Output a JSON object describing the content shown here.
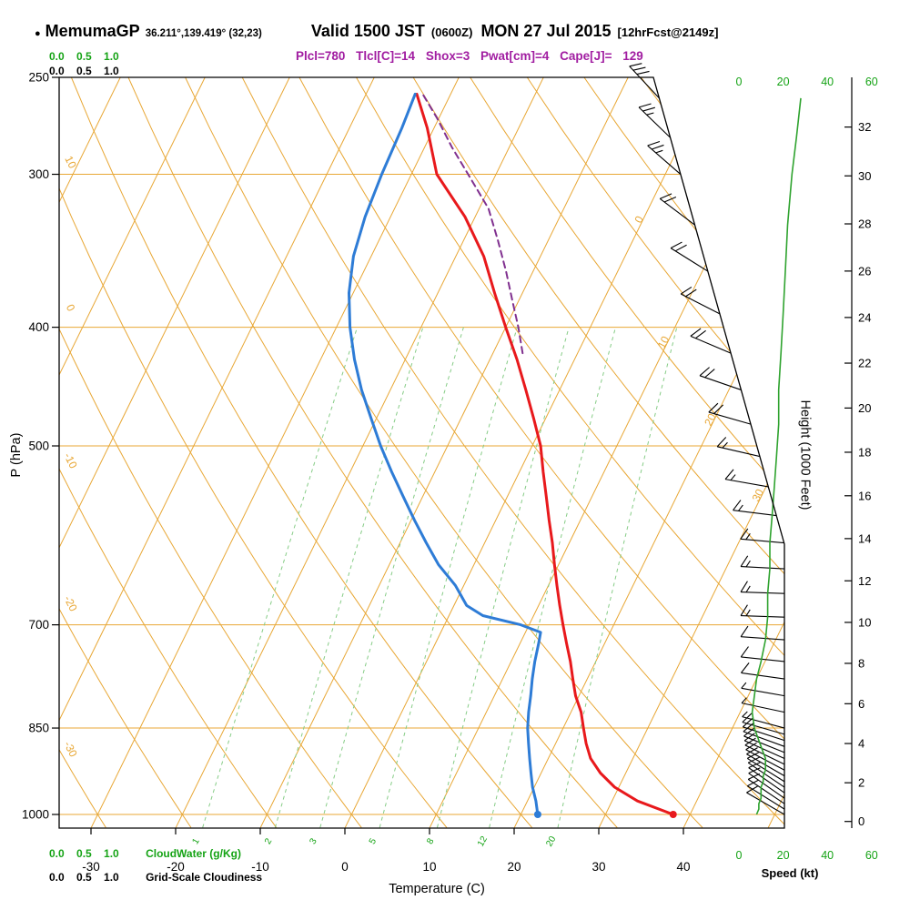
{
  "header": {
    "bullet": "●",
    "station": "MemumaGP",
    "coords": "36.211°,139.419° (32,23)",
    "valid_main": "Valid 1500 JST",
    "valid_z": "(0600Z)",
    "valid_date": "MON 27 Jul 2015",
    "fcst": "[12hrFcst@2149z]",
    "stats": "Plcl=780 Tlcl[C]=14 Shox=3 Pwat[cm]=4 Cape[J]= 129"
  },
  "axis": {
    "pressure_label": "P (hPa)",
    "pressure_ticks": [
      250,
      300,
      400,
      500,
      700,
      850,
      1000
    ],
    "temp_label": "Temperature (C)",
    "temp_ticks": [
      -30,
      -20,
      -10,
      0,
      10,
      20,
      30,
      40
    ],
    "height_label": "Height (1000 Feet)",
    "height_ticks": [
      0,
      2,
      4,
      6,
      8,
      10,
      12,
      14,
      16,
      18,
      20,
      22,
      24,
      26,
      28,
      30,
      32
    ],
    "speed_label": "Speed (kt)",
    "speed_ticks": [
      0,
      20,
      40,
      60
    ],
    "cloud_scale_text": "0.0 0.5 1.0",
    "cloudwater_label": "CloudWater (g/Kg)",
    "cloudiness_label": "Grid-Scale Cloudiness"
  },
  "colors": {
    "isoline": "#E8A735",
    "green_text": "#15A315",
    "green_dashed": "#86CC86",
    "speed_green": "#2FA32F",
    "red": "#E8191C",
    "blue": "#2E7CD6",
    "purple": "#80308F",
    "magenta": "#A11DA1",
    "black": "#000000"
  },
  "chart_data": {
    "type": "line",
    "subtype": "skew-T log-p sounding",
    "pressure_range_hPa": [
      250,
      1025
    ],
    "isotherm_grid_C": {
      "start": -80,
      "end": 50,
      "step": 10
    },
    "dry_adiabat_grid_C": {
      "start": -30,
      "end": 120,
      "step": 10
    },
    "dry_adiabat_labels_C": [
      10,
      0,
      -10,
      -20,
      -30
    ],
    "isotherm_labels_C": [
      0,
      10,
      20,
      30
    ],
    "mixing_ratio_lines_g_kg": [
      1,
      2,
      3,
      5,
      8,
      12,
      20
    ],
    "temperature_profile": {
      "pressure_hPa": [
        1000,
        975,
        950,
        925,
        900,
        875,
        850,
        825,
        800,
        775,
        750,
        725,
        700,
        675,
        650,
        625,
        600,
        575,
        550,
        525,
        500,
        475,
        450,
        425,
        400,
        375,
        350,
        325,
        300,
        275,
        258
      ],
      "value_C": [
        38,
        33,
        29.5,
        27,
        25,
        23.6,
        22.4,
        21.2,
        19.6,
        18.3,
        17,
        15.5,
        14,
        12.5,
        11,
        9.5,
        8,
        6.3,
        4.6,
        2.8,
        1,
        -1.4,
        -4,
        -6.8,
        -10,
        -13.3,
        -16.7,
        -21.2,
        -27,
        -30.8,
        -34
      ]
    },
    "dewpoint_profile": {
      "pressure_hPa": [
        1000,
        975,
        950,
        925,
        900,
        875,
        850,
        825,
        800,
        775,
        750,
        725,
        710,
        700,
        688,
        675,
        650,
        625,
        600,
        575,
        550,
        525,
        500,
        475,
        450,
        425,
        400,
        375,
        350,
        325,
        300,
        275,
        258
      ],
      "value_C": [
        22,
        21,
        19.8,
        18.8,
        17.8,
        16.8,
        15.8,
        15,
        14.3,
        13.5,
        12.8,
        12.2,
        11.8,
        9,
        4,
        1.5,
        -1,
        -4.2,
        -6.9,
        -9.6,
        -12.3,
        -15.1,
        -17.9,
        -20.6,
        -23.4,
        -26,
        -28.4,
        -30.5,
        -32.1,
        -33,
        -33.5,
        -33.8,
        -34.2
      ]
    },
    "parcel_path": {
      "pressure_hPa": [
        420,
        400,
        380,
        360,
        340,
        320,
        300,
        285,
        270,
        258
      ],
      "value_C": [
        -6.5,
        -8.5,
        -10.8,
        -13.2,
        -15.9,
        -18.9,
        -23.3,
        -26.8,
        -30.2,
        -33.3
      ]
    },
    "surface_markers": {
      "pressure_hPa": 1000,
      "temp_C": 38,
      "dewpoint_C": 22
    },
    "wind_profile": {
      "pressure_hPa": [
        1000,
        990,
        980,
        970,
        960,
        950,
        940,
        930,
        920,
        910,
        900,
        890,
        880,
        870,
        860,
        850,
        825,
        800,
        775,
        750,
        720,
        690,
        660,
        630,
        600,
        570,
        540,
        510,
        480,
        450,
        420,
        390,
        360,
        330,
        300,
        280,
        260
      ],
      "direction_deg": [
        300,
        302,
        304,
        305,
        305,
        304,
        302,
        300,
        298,
        296,
        294,
        292,
        290,
        288,
        286,
        285,
        282,
        280,
        278,
        276,
        274,
        272,
        272,
        273,
        275,
        277,
        280,
        283,
        286,
        289,
        293,
        297,
        302,
        307,
        311,
        314,
        317
      ],
      "speed_kt": [
        8,
        9,
        9,
        10,
        10,
        10,
        11,
        11,
        12,
        12,
        12,
        11,
        10,
        9,
        8,
        7,
        6,
        7,
        8,
        10,
        12,
        13,
        13,
        14,
        14,
        15,
        16,
        17,
        18,
        18,
        19,
        20,
        21,
        22,
        24,
        26,
        28
      ]
    },
    "indices": {
      "Plcl": 780,
      "Tlcl_C": 14,
      "Showalter": 3,
      "Pwat_cm": 4,
      "Cape_J": 129
    }
  }
}
